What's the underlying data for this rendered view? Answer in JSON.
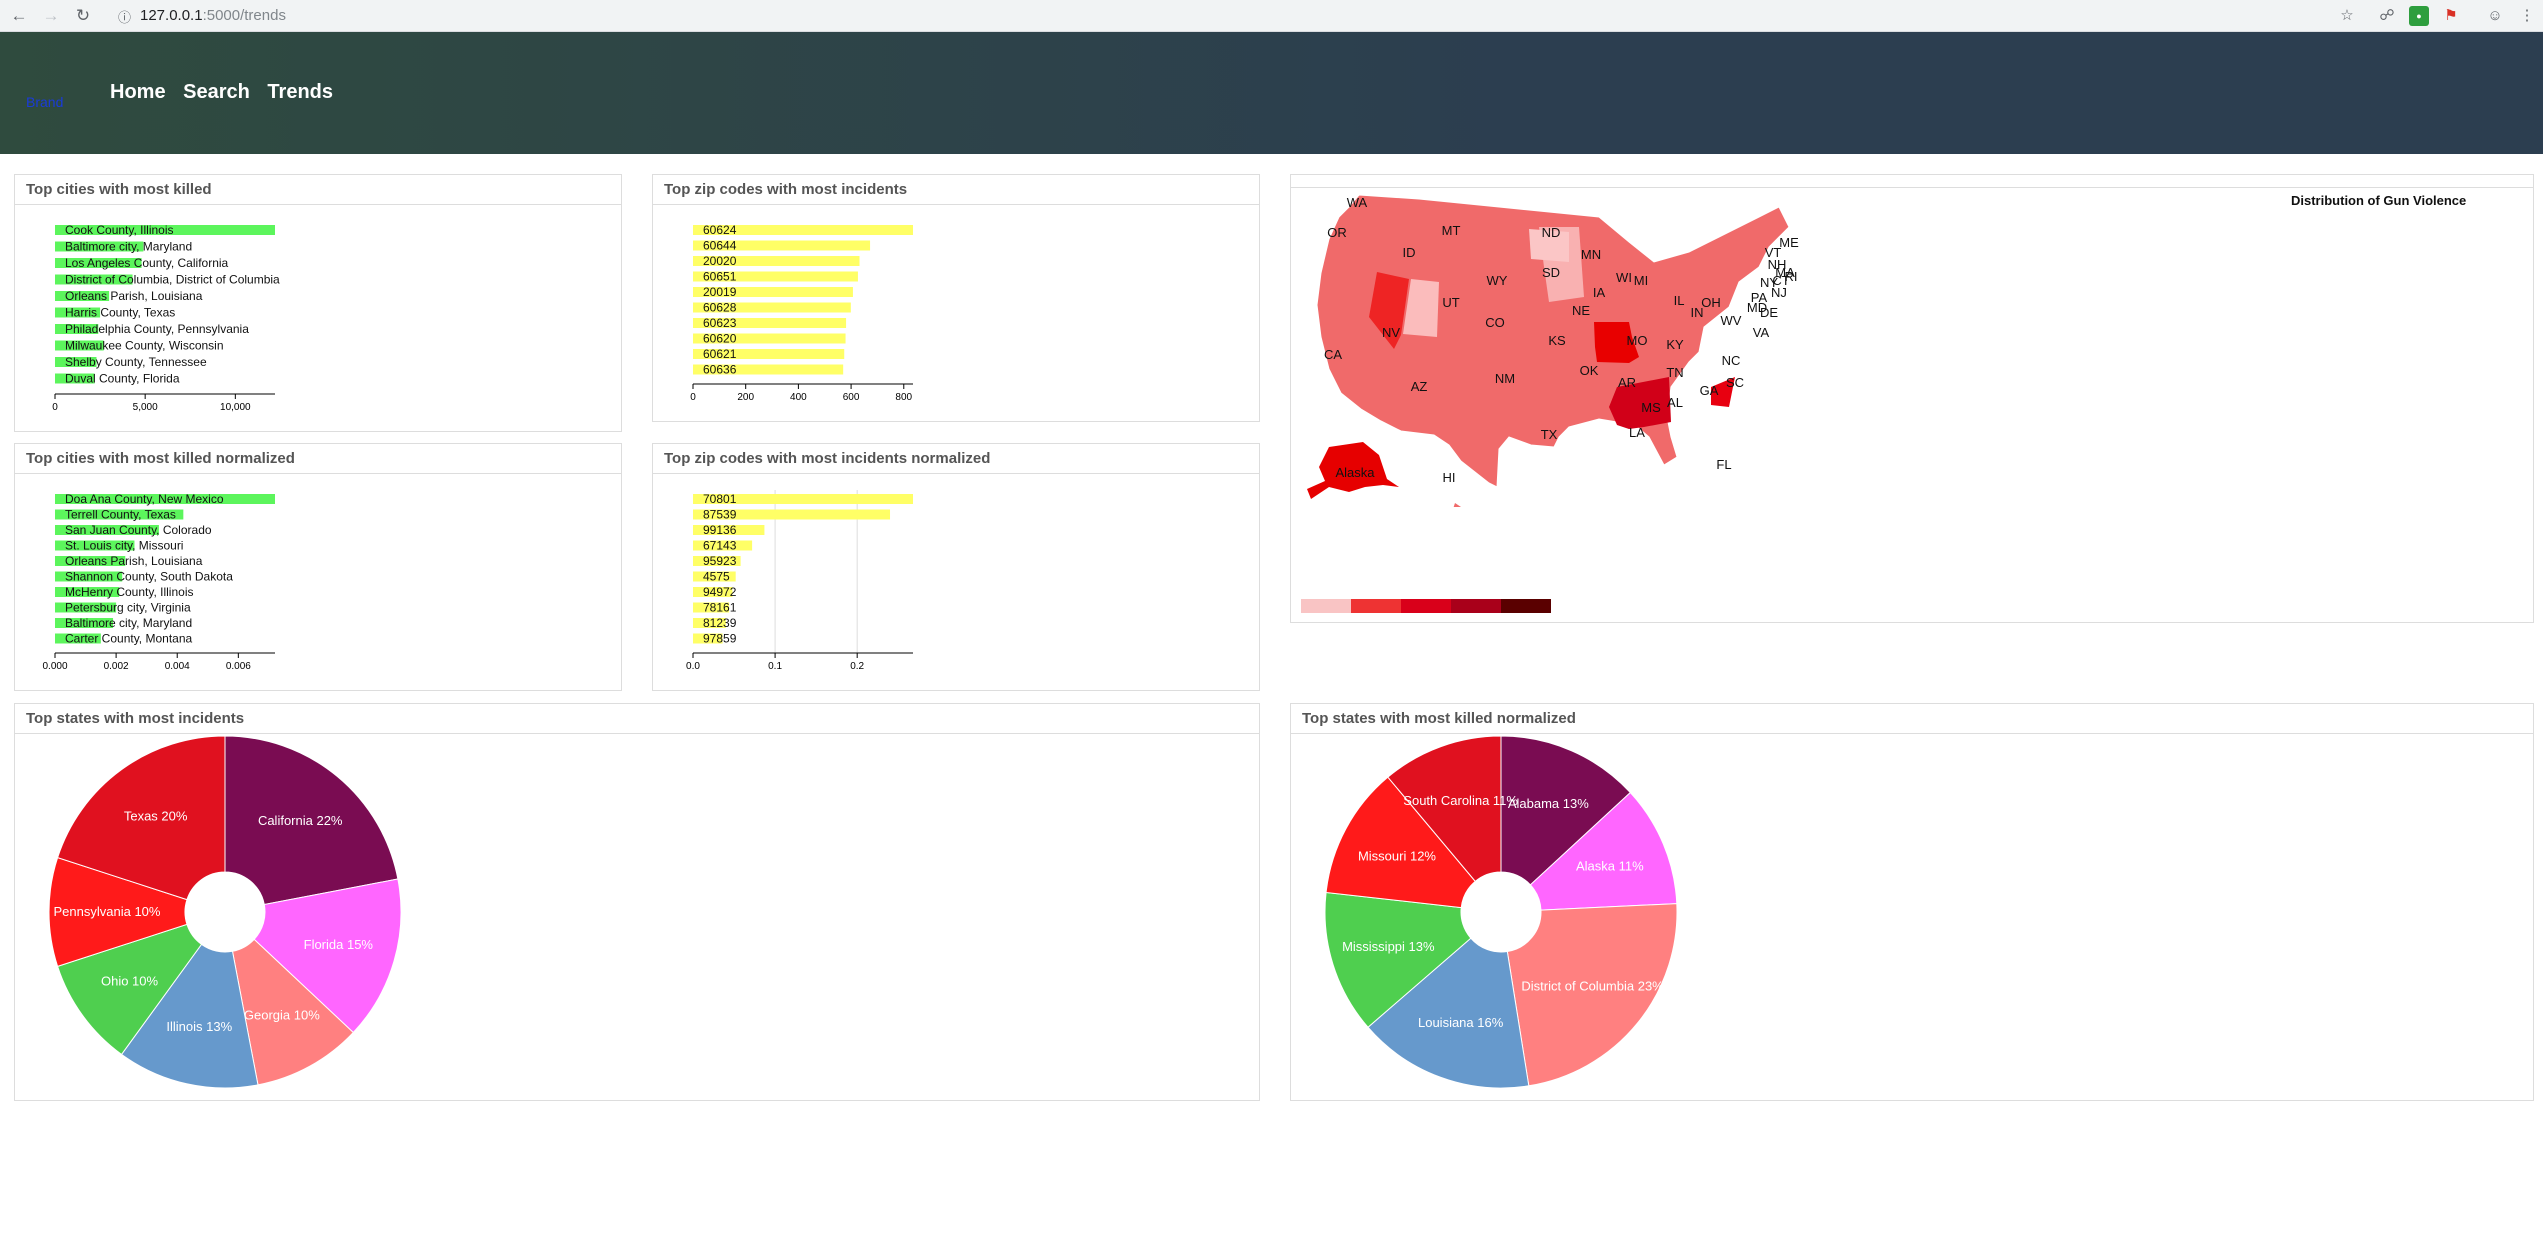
{
  "browser": {
    "url_host": "127.0.0.1",
    "url_path": ":5000/trends"
  },
  "header": {
    "brand": "Brand",
    "nav": [
      "Home",
      "Search",
      "Trends"
    ]
  },
  "colors": {
    "green_bar": "#5cf55c",
    "yellow_bar": "#ffff66",
    "header_bg": "#2c3e50"
  },
  "panels": {
    "cities_killed": "Top cities with most killed",
    "zip_incidents": "Top zip codes with most incidents",
    "cities_killed_norm": "Top cities with most killed normalized",
    "zip_incidents_norm": "Top zip codes with most incidents normalized",
    "states_incidents": "Top states with most incidents",
    "states_killed_norm": "Top states with most killed normalized"
  },
  "chart_data": [
    {
      "id": "cities_killed",
      "type": "bar",
      "orientation": "horizontal",
      "categories": [
        "Cook County, Illinois",
        "Baltimore city, Maryland",
        "Los Angeles County, California",
        "District of Columbia, District of Columbia",
        "Orleans Parish, Louisiana",
        "Harris County, Texas",
        "Philadelphia County, Pennsylvania",
        "Milwaukee County, Wisconsin",
        "Shelby County, Tennessee",
        "Duval County, Florida"
      ],
      "values": [
        12200,
        4900,
        4800,
        4300,
        3000,
        2500,
        2400,
        2700,
        2300,
        2200
      ],
      "xlim": [
        0,
        12200
      ],
      "ticks": [
        0,
        5000,
        10000
      ],
      "tick_labels": [
        "0",
        "5,000",
        "10,000"
      ],
      "color": "#5cf55c"
    },
    {
      "id": "zip_incidents",
      "type": "bar",
      "orientation": "horizontal",
      "categories": [
        "60624",
        "60644",
        "20020",
        "60651",
        "20019",
        "60628",
        "60623",
        "60620",
        "60621",
        "60636"
      ],
      "values": [
        835,
        672,
        632,
        626,
        607,
        599,
        581,
        579,
        574,
        570
      ],
      "xlim": [
        0,
        835
      ],
      "ticks": [
        0,
        200,
        400,
        600,
        800
      ],
      "tick_labels": [
        "0",
        "200",
        "400",
        "600",
        "800"
      ],
      "color": "#ffff66"
    },
    {
      "id": "cities_killed_norm",
      "type": "bar",
      "orientation": "horizontal",
      "categories": [
        "Doa Ana County, New Mexico",
        "Terrell County, Texas",
        "San Juan County, Colorado",
        "St. Louis city, Missouri",
        "Orleans Parish, Louisiana",
        "Shannon County, South Dakota",
        "McHenry County, Illinois",
        "Petersburg city, Virginia",
        "Baltimore city, Maryland",
        "Carter County, Montana"
      ],
      "values": [
        0.0072,
        0.0042,
        0.0034,
        0.0026,
        0.0023,
        0.0022,
        0.0021,
        0.002,
        0.0019,
        0.0015
      ],
      "xlim": [
        0,
        0.0072
      ],
      "ticks": [
        0,
        0.002,
        0.004,
        0.006
      ],
      "tick_labels": [
        "0.000",
        "0.002",
        "0.004",
        "0.006"
      ],
      "color": "#5cf55c"
    },
    {
      "id": "zip_incidents_norm",
      "type": "bar",
      "orientation": "horizontal",
      "categories": [
        "70801",
        "87539",
        "99136",
        "67143",
        "95923",
        "4575",
        "94972",
        "78161",
        "81239",
        "97859"
      ],
      "values": [
        0.268,
        0.24,
        0.087,
        0.072,
        0.058,
        0.052,
        0.048,
        0.044,
        0.04,
        0.036
      ],
      "xlim": [
        0,
        0.268
      ],
      "ticks": [
        0,
        0.1,
        0.2
      ],
      "tick_labels": [
        "0.0",
        "0.1",
        "0.2"
      ],
      "grid": true,
      "color": "#ffff66"
    },
    {
      "id": "states_incidents",
      "type": "pie",
      "donut": true,
      "slices": [
        {
          "label": "California 22%",
          "value": 22,
          "color": "#7a0c52"
        },
        {
          "label": "Florida 15%",
          "value": 15,
          "color": "#ff66ff"
        },
        {
          "label": "Georgia 10%",
          "value": 10,
          "color": "#ff8080"
        },
        {
          "label": "Illinois 13%",
          "value": 13,
          "color": "#6699cc"
        },
        {
          "label": "Ohio 10%",
          "value": 10,
          "color": "#4fcf4f"
        },
        {
          "label": "Pennsylvania 10%",
          "value": 10,
          "color": "#ff1a1a"
        },
        {
          "label": "Texas 20%",
          "value": 20,
          "color": "#e0111f"
        }
      ]
    },
    {
      "id": "states_killed_norm",
      "type": "pie",
      "donut": true,
      "slices": [
        {
          "label": "Alabama 13%",
          "value": 13,
          "color": "#7a0c52"
        },
        {
          "label": "Alaska 11%",
          "value": 11,
          "color": "#ff66ff"
        },
        {
          "label": "District of Columbia 23%",
          "value": 23,
          "color": "#ff8080"
        },
        {
          "label": "Louisiana 16%",
          "value": 16,
          "color": "#6699cc"
        },
        {
          "label": "Mississippi 13%",
          "value": 13,
          "color": "#4fcf4f"
        },
        {
          "label": "Missouri 12%",
          "value": 12,
          "color": "#ff1a1a"
        },
        {
          "label": "South Carolina 11%",
          "value": 11,
          "color": "#e0111f"
        }
      ]
    }
  ],
  "map": {
    "title": "Distribution of Gun Violence",
    "legend_colors": [
      "#f9c4c4",
      "#ee3333",
      "#d9001a",
      "#a9001a",
      "#5a0000"
    ],
    "state_labels": [
      "WA",
      "OR",
      "ID",
      "MT",
      "ND",
      "SD",
      "MN",
      "WI",
      "MI",
      "NY",
      "VT",
      "NH",
      "ME",
      "MA",
      "CT",
      "RI",
      "NJ",
      "PA",
      "DE",
      "MD",
      "WV",
      "VA",
      "OH",
      "IN",
      "IL",
      "IA",
      "NE",
      "WY",
      "UT",
      "NV",
      "CA",
      "CO",
      "KS",
      "MO",
      "KY",
      "TN",
      "NC",
      "SC",
      "GA",
      "AL",
      "MS",
      "AR",
      "LA",
      "OK",
      "TX",
      "NM",
      "AZ",
      "FL",
      "Alaska",
      "HI"
    ]
  }
}
